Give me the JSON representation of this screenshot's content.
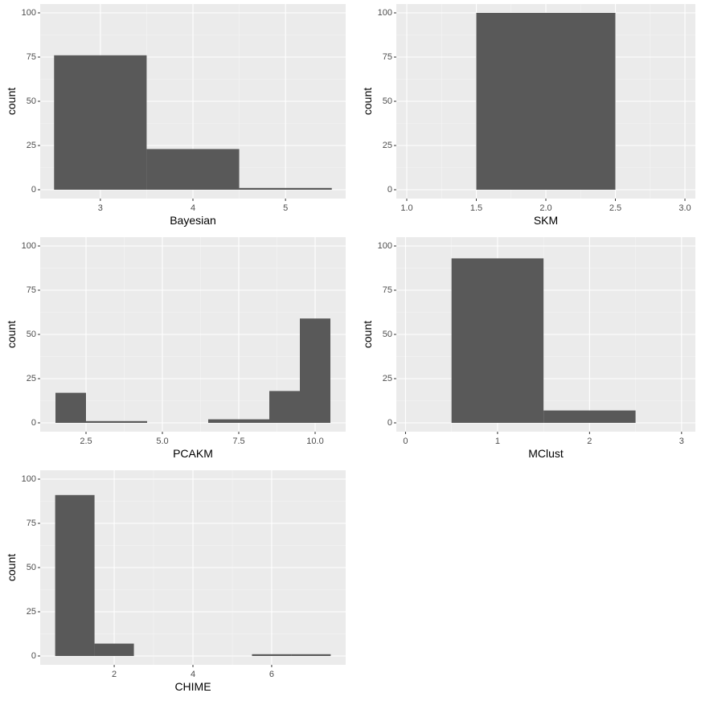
{
  "chart_data": [
    {
      "type": "histogram",
      "x_label": "Bayesian",
      "y_label": "count",
      "bins": [
        2.5,
        3.5,
        4.5,
        5.5
      ],
      "counts": [
        76,
        23,
        1
      ],
      "color": "#595959",
      "xlim": [
        2.35,
        5.65
      ],
      "xticks": [
        3,
        4,
        5
      ],
      "ylim": [
        -5,
        105
      ],
      "yticks": [
        0,
        25,
        50,
        75,
        100
      ],
      "grid": true
    },
    {
      "type": "histogram",
      "x_label": "SKM",
      "y_label": "count",
      "bins": [
        1.5,
        2.5
      ],
      "counts": [
        100
      ],
      "color": "#595959",
      "xlim": [
        0.925,
        3.075
      ],
      "xticks": [
        {
          "value": 1,
          "label": "1.0"
        },
        1.5,
        {
          "value": 2,
          "label": "2.0"
        },
        2.5,
        {
          "value": 3,
          "label": "3.0"
        }
      ],
      "ylim": [
        -5,
        105
      ],
      "yticks": [
        0,
        25,
        50,
        75,
        100
      ],
      "grid": true
    },
    {
      "type": "histogram",
      "x_label": "PCAKM",
      "y_label": "count",
      "bins": [
        1.5,
        2.5,
        3.5,
        4.5,
        5.5,
        6.5,
        7.5,
        8.5,
        9.5,
        10.5
      ],
      "counts": [
        17,
        1,
        1,
        0,
        0,
        2,
        2,
        18,
        59
      ],
      "color": "#595959",
      "xlim": [
        1.0,
        11.0
      ],
      "xticks": [
        2.5,
        {
          "value": 5,
          "label": "5.0"
        },
        7.5,
        {
          "value": 10,
          "label": "10.0"
        }
      ],
      "ylim": [
        -5,
        105
      ],
      "yticks": [
        0,
        25,
        50,
        75,
        100
      ],
      "grid": true
    },
    {
      "type": "histogram",
      "x_label": "MClust",
      "y_label": "count",
      "bins": [
        0.5,
        1.5,
        2.5
      ],
      "counts": [
        93,
        7
      ],
      "color": "#595959",
      "xlim": [
        -0.1,
        3.15
      ],
      "xticks": [
        0,
        1,
        2,
        3
      ],
      "ylim": [
        -5,
        105
      ],
      "yticks": [
        0,
        25,
        50,
        75,
        100
      ],
      "grid": true
    },
    {
      "type": "histogram",
      "x_label": "CHIME",
      "y_label": "count",
      "bins": [
        0.5,
        1.5,
        2.5,
        3.5,
        4.5,
        5.5,
        6.5,
        7.5
      ],
      "counts": [
        91,
        7,
        0,
        0,
        0,
        1,
        1
      ],
      "color": "#595959",
      "xlim": [
        0.12,
        7.88
      ],
      "xticks": [
        2,
        4,
        6
      ],
      "ylim": [
        -5,
        105
      ],
      "yticks": [
        0,
        25,
        50,
        75,
        100
      ],
      "grid": true
    }
  ]
}
